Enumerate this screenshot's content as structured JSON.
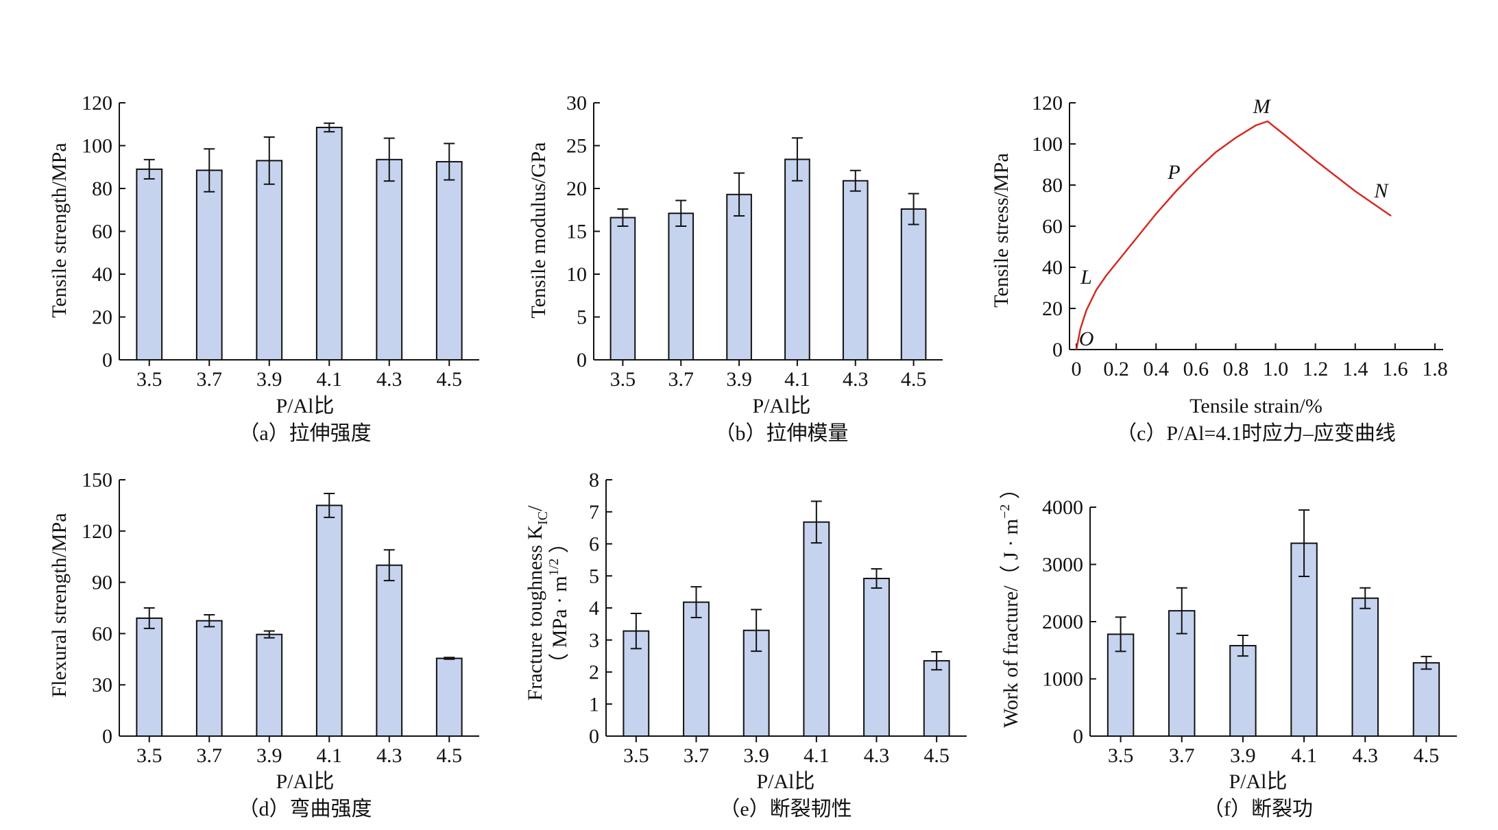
{
  "chart_data": [
    {
      "id": "a",
      "type": "bar",
      "categories": [
        "3.5",
        "3.7",
        "3.9",
        "4.1",
        "4.3",
        "4.5"
      ],
      "values": [
        89,
        88.5,
        93,
        108.5,
        93.5,
        92.5
      ],
      "errors": [
        4.5,
        10,
        11,
        2,
        10,
        8.5
      ],
      "ylabel": "Tensile strength/MPa",
      "xlabel": "P/Al比",
      "caption": "（a）拉伸强度",
      "ylim": [
        0,
        120
      ],
      "yticks": [
        0,
        20,
        40,
        60,
        80,
        100,
        120
      ]
    },
    {
      "id": "b",
      "type": "bar",
      "categories": [
        "3.5",
        "3.7",
        "3.9",
        "4.1",
        "4.3",
        "4.5"
      ],
      "values": [
        16.6,
        17.1,
        19.3,
        23.4,
        20.9,
        17.6
      ],
      "errors": [
        1.0,
        1.5,
        2.5,
        2.5,
        1.2,
        1.8
      ],
      "ylabel": "Tensile modulus/GPa",
      "xlabel": "P/Al比",
      "caption": "（b）拉伸模量",
      "ylim": [
        0,
        30
      ],
      "yticks": [
        0,
        5,
        10,
        15,
        20,
        25,
        30
      ]
    },
    {
      "id": "c",
      "type": "line",
      "series": [
        {
          "x": [
            0.0,
            0.02,
            0.05,
            0.1,
            0.15,
            0.2,
            0.3,
            0.4,
            0.5,
            0.55,
            0.6,
            0.7,
            0.8,
            0.9,
            0.96,
            1.05,
            1.2,
            1.4,
            1.58
          ],
          "y": [
            0,
            10,
            19,
            29,
            36,
            42,
            54,
            66,
            77,
            82,
            87,
            96,
            103,
            109,
            111,
            104,
            92,
            77,
            65
          ]
        }
      ],
      "annotations": [
        {
          "text": "O",
          "x": 0.05,
          "y": 2
        },
        {
          "text": "L",
          "x": 0.05,
          "y": 32
        },
        {
          "text": "P",
          "x": 0.49,
          "y": 83
        },
        {
          "text": "M",
          "x": 0.93,
          "y": 115
        },
        {
          "text": "N",
          "x": 1.53,
          "y": 74
        }
      ],
      "ylabel": "Tensile stress/MPa",
      "xlabel": "Tensile strain/%",
      "caption": "（c）P/Al=4.1时应力–应变曲线",
      "xlim": [
        0,
        1.8
      ],
      "ylim": [
        0,
        120
      ],
      "xticks": [
        "0",
        "0.2",
        "0.4",
        "0.6",
        "0.8",
        "1.0",
        "1.2",
        "1.4",
        "1.6",
        "1.8"
      ],
      "yticks": [
        0,
        20,
        40,
        60,
        80,
        100,
        120
      ]
    },
    {
      "id": "d",
      "type": "bar",
      "categories": [
        "3.5",
        "3.7",
        "3.9",
        "4.1",
        "4.3",
        "4.5"
      ],
      "values": [
        69,
        67.5,
        59.5,
        135,
        100,
        45.5
      ],
      "errors": [
        6,
        3.5,
        2,
        7,
        9,
        0.5
      ],
      "ylabel": "Flexural strength/MPa",
      "xlabel": "P/Al比",
      "caption": "（d）弯曲强度",
      "ylim": [
        0,
        150
      ],
      "yticks": [
        0,
        30,
        60,
        90,
        120,
        150
      ]
    },
    {
      "id": "e",
      "type": "bar",
      "categories": [
        "3.5",
        "3.7",
        "3.9",
        "4.1",
        "4.3",
        "4.5"
      ],
      "values": [
        3.28,
        4.18,
        3.3,
        6.68,
        4.92,
        2.35
      ],
      "errors": [
        0.55,
        0.48,
        0.65,
        0.65,
        0.3,
        0.28
      ],
      "ylabel": "Fracture toughness K",
      "ylabel_sub": "IC",
      "ylabel_slash": "/",
      "ylabel_line2": "（ MPa · m",
      "ylabel_line2_sup": "1/2",
      "ylabel_line2_end": " ）",
      "xlabel": "P/Al比",
      "caption": "（e）断裂韧性",
      "ylim": [
        0,
        8
      ],
      "yticks": [
        0,
        1,
        2,
        3,
        4,
        5,
        6,
        7,
        8
      ]
    },
    {
      "id": "f",
      "type": "bar",
      "categories": [
        "3.5",
        "3.7",
        "3.9",
        "4.1",
        "4.3",
        "4.5"
      ],
      "values": [
        1780,
        2190,
        1580,
        3370,
        2410,
        1280
      ],
      "errors": [
        300,
        400,
        180,
        580,
        180,
        110
      ],
      "ylabel": "Work of fracture/（ J · m",
      "ylabel_sup": "−2",
      "ylabel_end": " ）",
      "xlabel": "P/Al比",
      "caption": "（f）断裂功",
      "ylim": [
        0,
        4000
      ],
      "yticks": [
        0,
        1000,
        2000,
        3000,
        4000
      ]
    }
  ]
}
